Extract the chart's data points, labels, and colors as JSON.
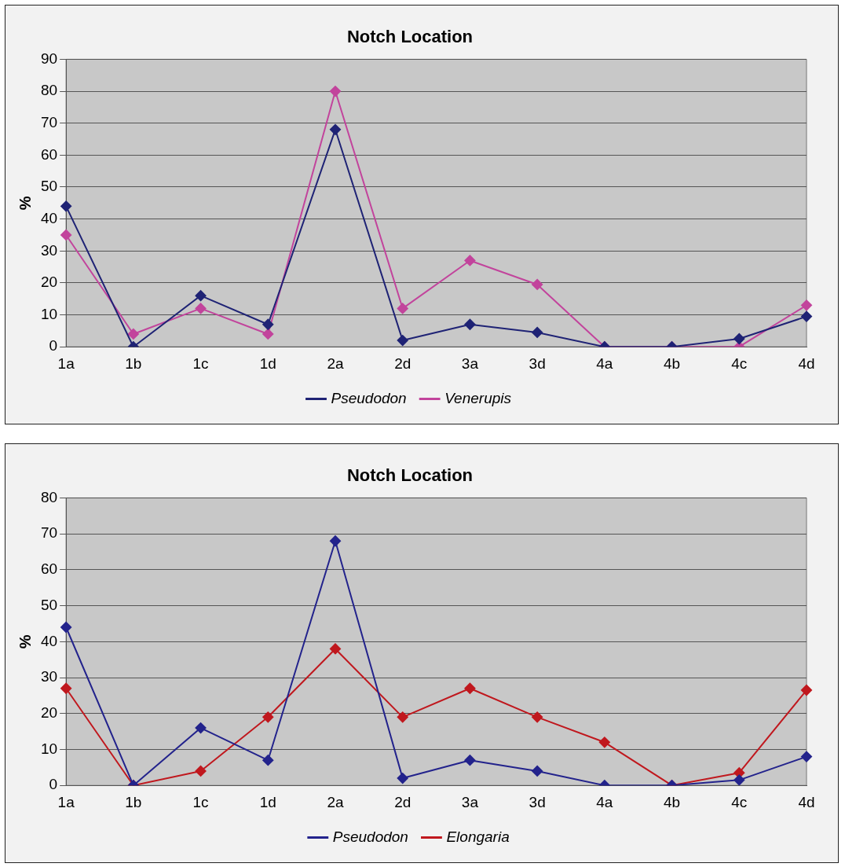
{
  "chart_data": [
    {
      "type": "line",
      "title": "Notch Location",
      "ylabel": "%",
      "categories": [
        "1a",
        "1b",
        "1c",
        "1d",
        "2a",
        "2d",
        "3a",
        "3d",
        "4a",
        "4b",
        "4c",
        "4d"
      ],
      "series": [
        {
          "name": "Pseudodon",
          "color": "#1f2375",
          "values": [
            44,
            0,
            16,
            7,
            68,
            2,
            7,
            4.5,
            0,
            0,
            2.5,
            9.5
          ]
        },
        {
          "name": "Venerupis",
          "color": "#c2449c",
          "values": [
            35,
            4,
            12,
            4,
            80,
            12,
            27,
            19.5,
            0,
            0,
            0,
            13
          ]
        }
      ],
      "ylim": [
        0,
        90
      ],
      "yticks": [
        0,
        10,
        20,
        30,
        40,
        50,
        60,
        70,
        80,
        90
      ],
      "grid": "y",
      "legend": "bottom",
      "marker": "diamond",
      "line_style": "solid"
    },
    {
      "type": "line",
      "title": "Notch Location",
      "ylabel": "%",
      "categories": [
        "1a",
        "1b",
        "1c",
        "1d",
        "2a",
        "2d",
        "3a",
        "3d",
        "4a",
        "4b",
        "4c",
        "4d"
      ],
      "series": [
        {
          "name": "Pseudodon",
          "color": "#23238c",
          "values": [
            44,
            0,
            16,
            7,
            68,
            2,
            7,
            4,
            0,
            0,
            1.5,
            8
          ]
        },
        {
          "name": "Elongaria",
          "color": "#c0181e",
          "values": [
            27,
            0,
            4,
            19,
            38,
            19,
            27,
            19,
            12,
            0,
            3.5,
            26.5
          ]
        }
      ],
      "ylim": [
        0,
        80
      ],
      "yticks": [
        0,
        10,
        20,
        30,
        40,
        50,
        60,
        70,
        80
      ],
      "grid": "y",
      "legend": "bottom",
      "marker": "diamond",
      "line_style": "solid"
    }
  ]
}
